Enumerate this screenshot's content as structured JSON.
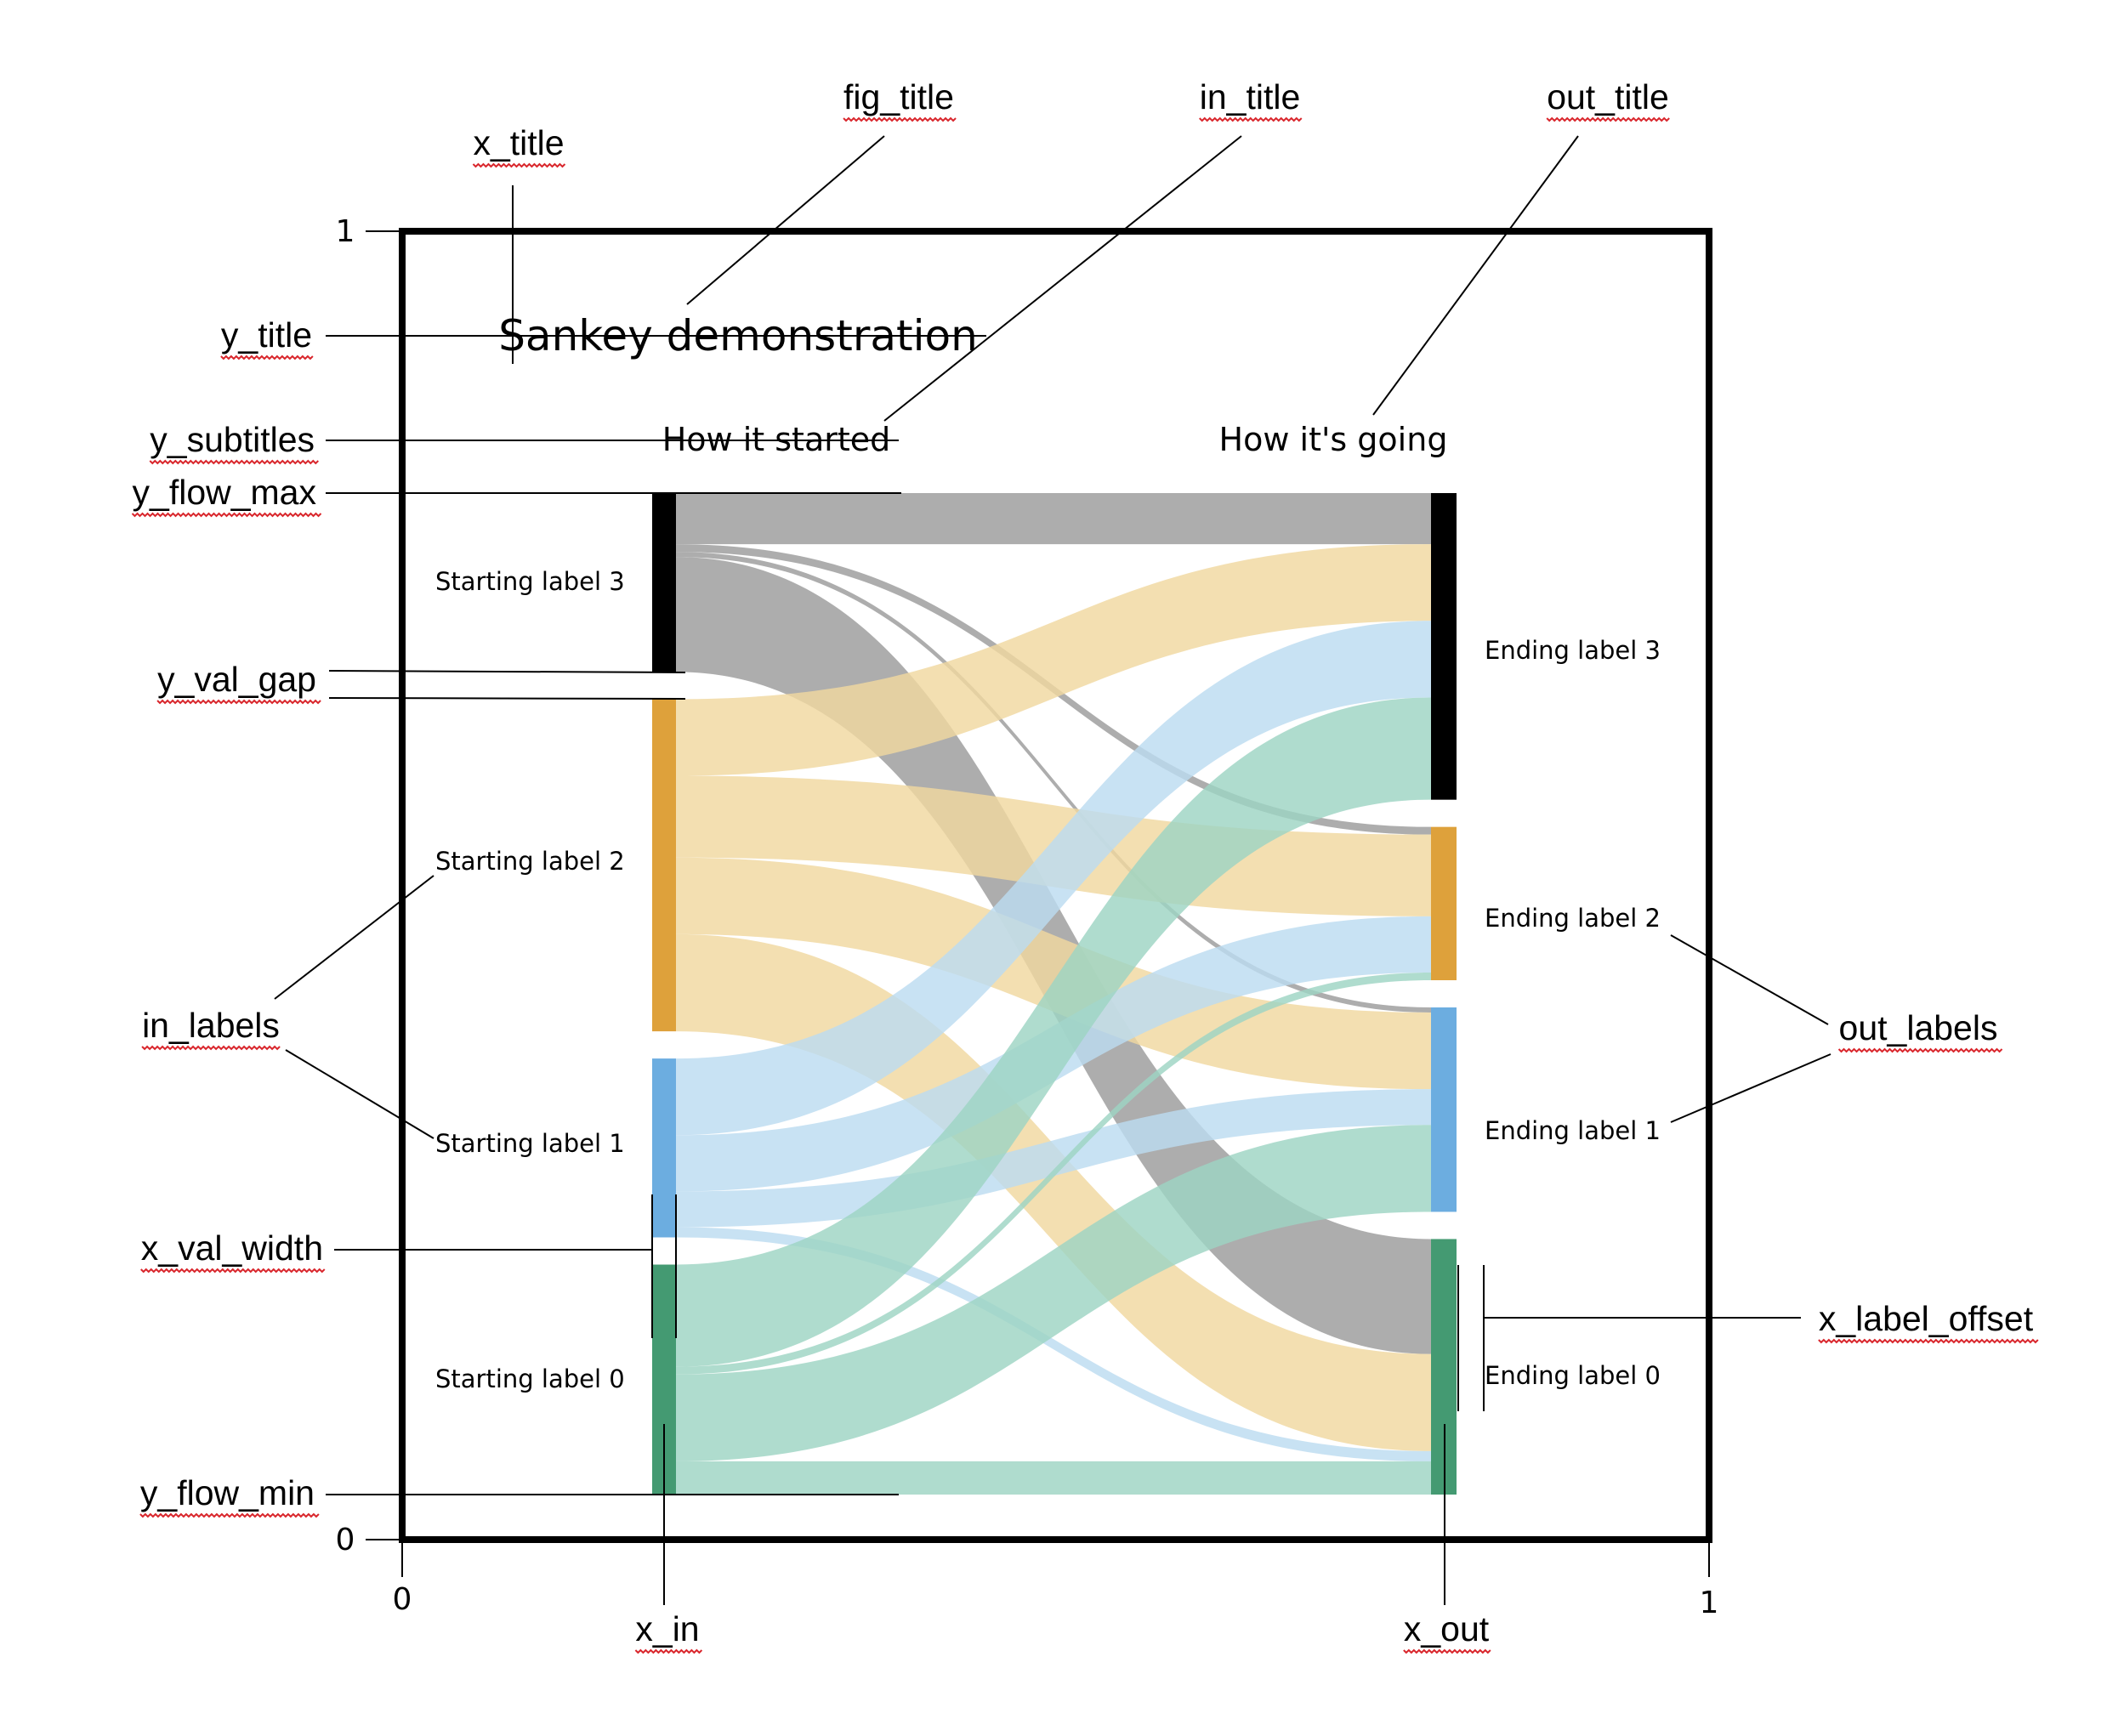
{
  "figure": {
    "fig_title": "Sankey demonstration",
    "in_title": "How it started",
    "out_title": "How it's going",
    "colors": {
      "frame": "#000000",
      "node_3": "#000000",
      "node_2": "#dea13b",
      "node_1": "#6cade0",
      "node_0": "#449a72",
      "flow_3": "#9b9b9b",
      "flow_2": "#f0d8a0",
      "flow_1": "#bcdcf0",
      "flow_0": "#9ed4c3"
    }
  },
  "nodes_in": [
    {
      "label": "Starting label 3",
      "value": 7
    },
    {
      "label": "Starting label 2",
      "value": 13
    },
    {
      "label": "Starting label 1",
      "value": 7
    },
    {
      "label": "Starting label 0",
      "value": 9
    }
  ],
  "nodes_out": [
    {
      "label": "Ending label 3",
      "value": 12
    },
    {
      "label": "Ending label 2",
      "value": 6
    },
    {
      "label": "Ending label 1",
      "value": 8
    },
    {
      "label": "Ending label 0",
      "value": 10
    }
  ],
  "flows": [
    {
      "from": 3,
      "to": 3,
      "value": 2
    },
    {
      "from": 3,
      "to": 2,
      "value": 0.3
    },
    {
      "from": 3,
      "to": 1,
      "value": 0.2
    },
    {
      "from": 3,
      "to": 0,
      "value": 4.5
    },
    {
      "from": 2,
      "to": 3,
      "value": 3
    },
    {
      "from": 2,
      "to": 2,
      "value": 3.2
    },
    {
      "from": 2,
      "to": 1,
      "value": 3
    },
    {
      "from": 2,
      "to": 0,
      "value": 3.8
    },
    {
      "from": 1,
      "to": 3,
      "value": 3
    },
    {
      "from": 1,
      "to": 2,
      "value": 2.2
    },
    {
      "from": 1,
      "to": 1,
      "value": 1.4
    },
    {
      "from": 1,
      "to": 0,
      "value": 0.4
    },
    {
      "from": 0,
      "to": 3,
      "value": 4
    },
    {
      "from": 0,
      "to": 2,
      "value": 0.3
    },
    {
      "from": 0,
      "to": 1,
      "value": 3.4
    },
    {
      "from": 0,
      "to": 0,
      "value": 1.3
    }
  ],
  "axes": {
    "x_zero": "0",
    "x_one": "1",
    "y_zero": "0",
    "y_one": "1"
  },
  "annotations": {
    "x_title": "x_title",
    "fig_title": "fig_title",
    "in_title": "in_title",
    "out_title": "out_title",
    "y_title": "y_title",
    "y_subtitles": "y_subtitles",
    "y_flow_max": "y_flow_max",
    "y_val_gap": "y_val_gap",
    "in_labels": "in_labels",
    "x_val_width": "x_val_width",
    "y_flow_min": "y_flow_min",
    "x_in": "x_in",
    "x_out": "x_out",
    "out_labels": "out_labels",
    "x_label_offset": "x_label_offset"
  }
}
